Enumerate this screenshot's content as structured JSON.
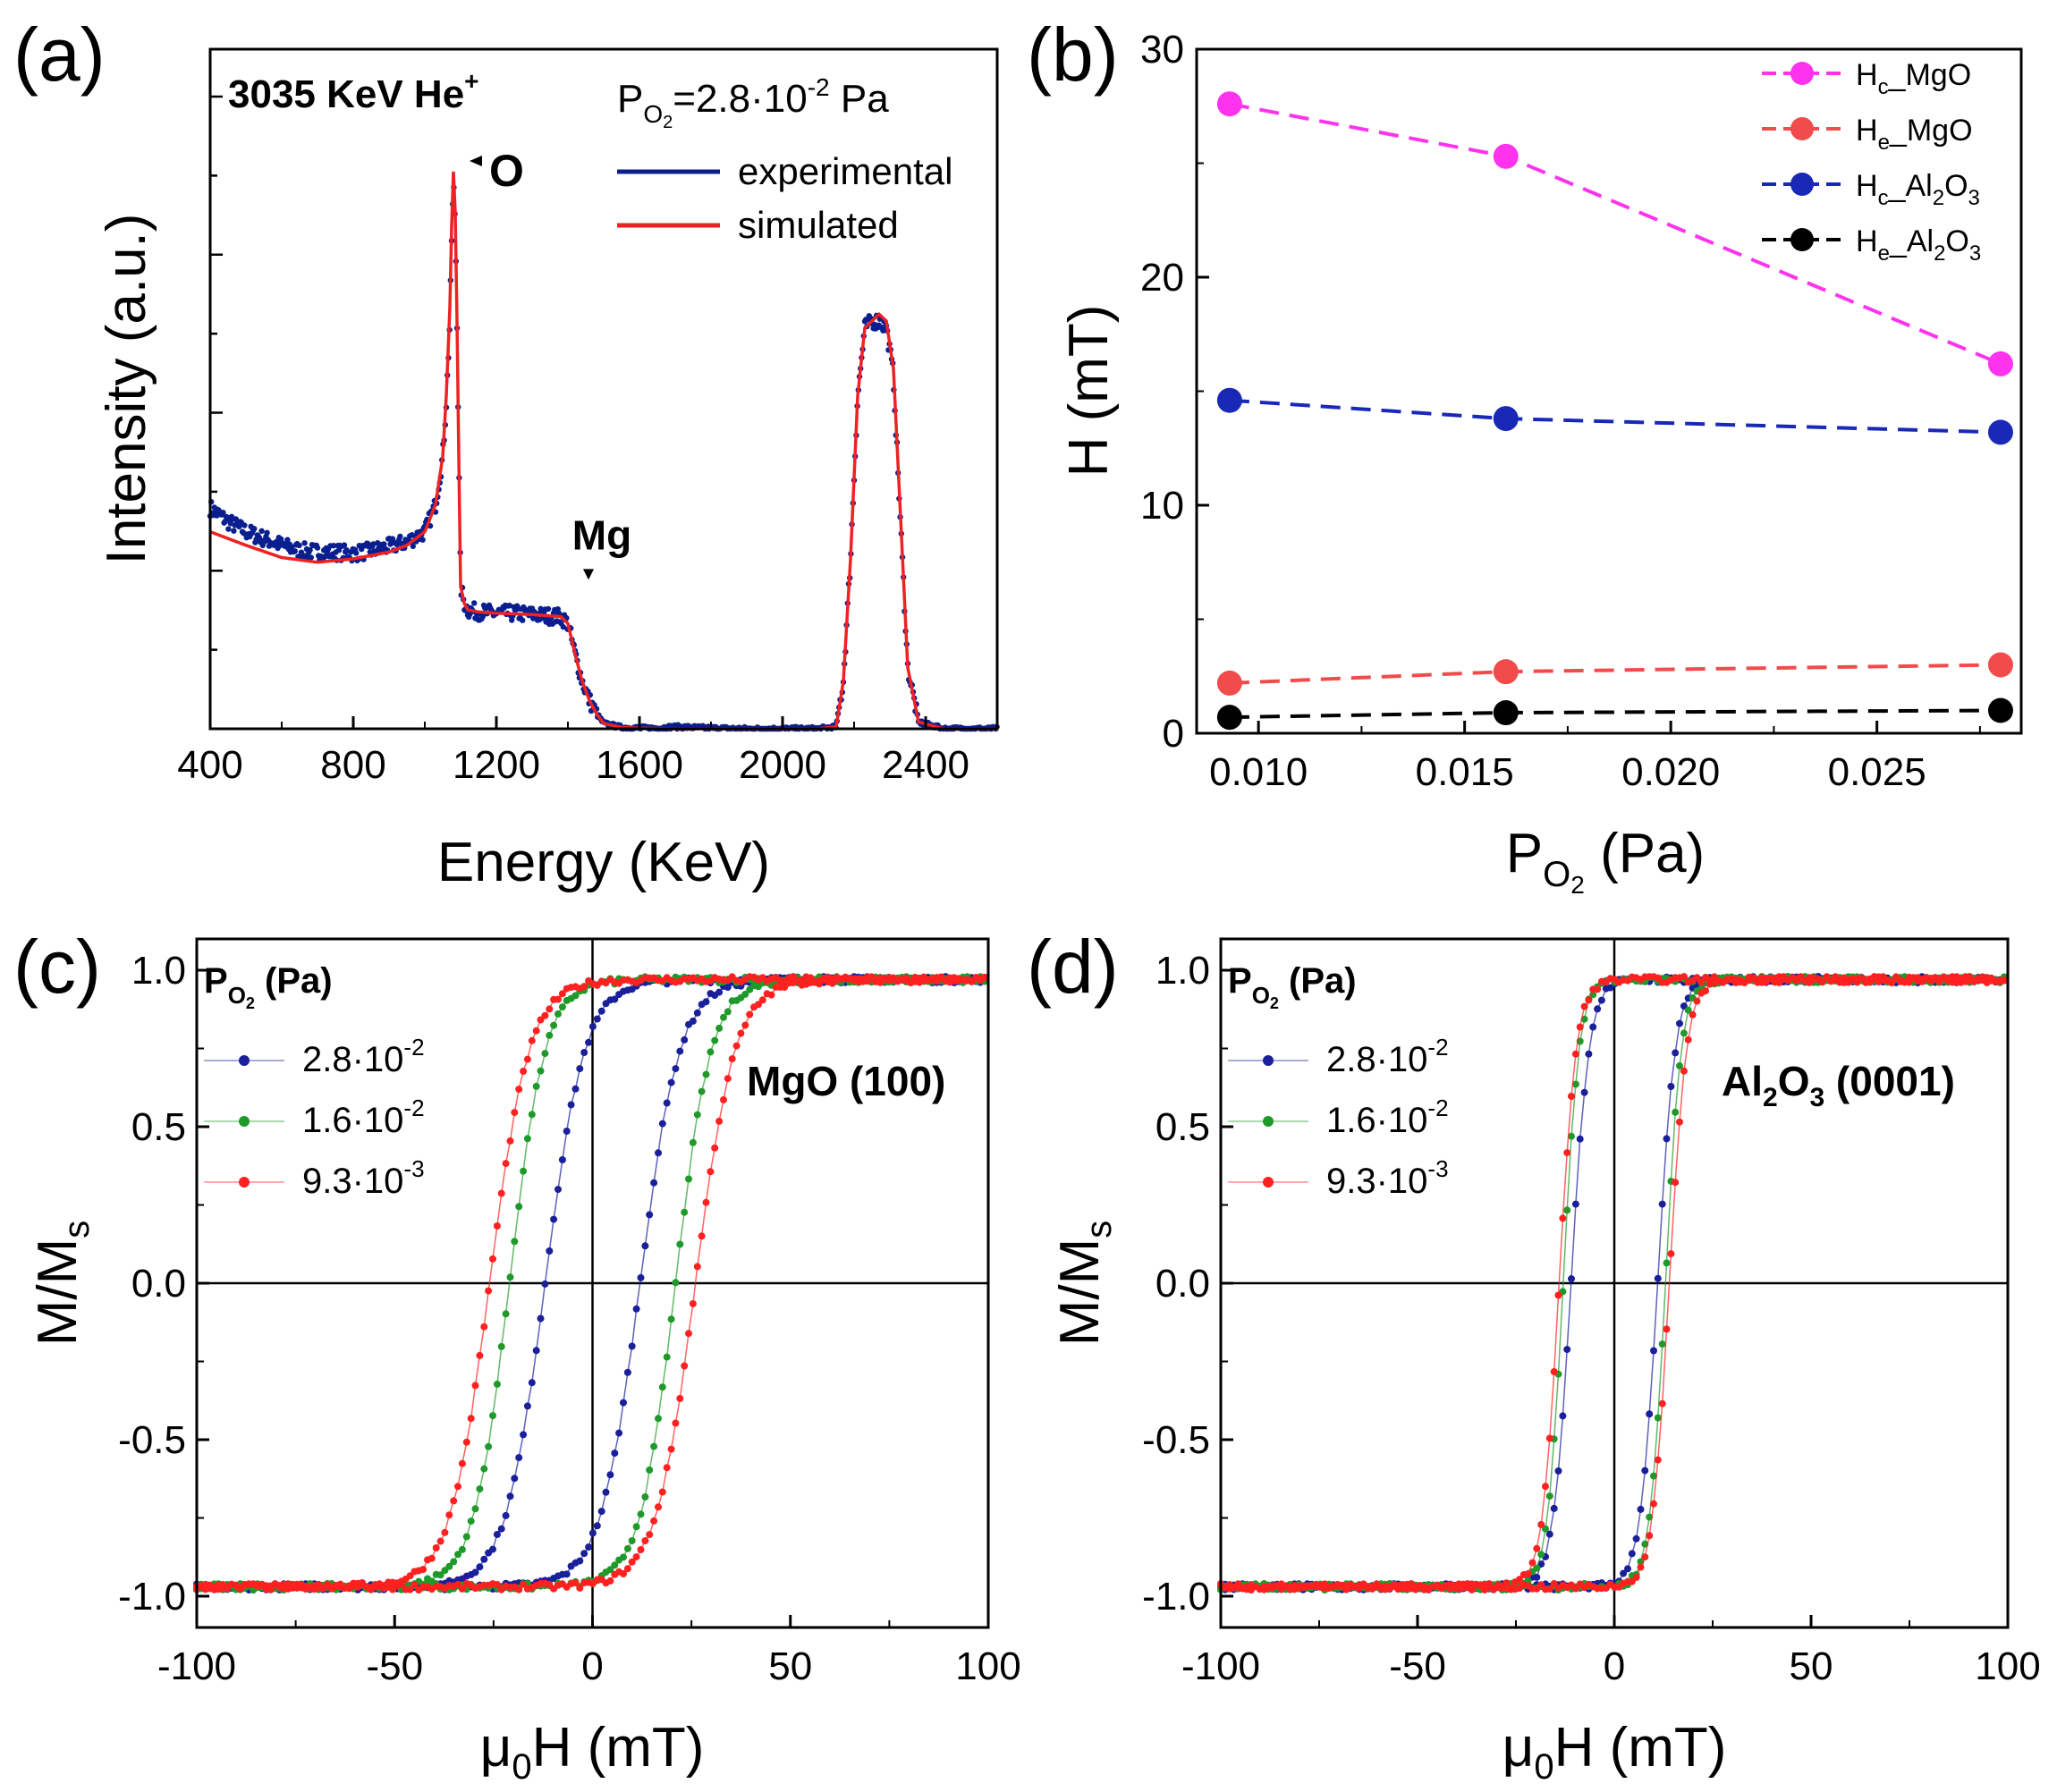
{
  "figure": {
    "panels": [
      "(a)",
      "(b)",
      "(c)",
      "(d)"
    ]
  },
  "chart_data": [
    {
      "id": "a",
      "type": "line",
      "panel_label": "(a)",
      "title": "",
      "xlabel": "Energy (KeV)",
      "ylabel": "Intensity (a.u.)",
      "xlim": [
        400,
        2600
      ],
      "ylim": [
        0,
        1.0
      ],
      "x_ticks": [
        "400",
        "800",
        "1200",
        "1600",
        "2000",
        "2400"
      ],
      "x_tick_values": [
        400,
        800,
        1200,
        1600,
        2000,
        2400
      ],
      "show_y_ticklabels": false,
      "annotation_beam": "3035 KeV He",
      "annotation_beam_sup": "+",
      "annotation_pressure_prefix": "P",
      "annotation_pressure_sub": "O",
      "annotation_pressure_subsub": "2",
      "annotation_pressure_value": "=2.8·10",
      "annotation_pressure_exp": "-2",
      "annotation_pressure_unit": " Pa",
      "peak_labels": [
        {
          "text": "O",
          "x": 1080,
          "y": 0.825
        },
        {
          "text": "Mg",
          "x": 1420,
          "y": 0.235
        }
      ],
      "colors": {
        "experimental": "#0a1f8f",
        "simulated": "#ee2222"
      },
      "series": [
        {
          "name": "experimental",
          "style": "points",
          "x": [
            400,
            450,
            500,
            550,
            600,
            650,
            700,
            750,
            800,
            850,
            900,
            950,
            1000,
            1030,
            1050,
            1060,
            1070,
            1075,
            1080,
            1085,
            1090,
            1095,
            1100,
            1110,
            1120,
            1150,
            1200,
            1250,
            1300,
            1350,
            1380,
            1400,
            1420,
            1440,
            1460,
            1480,
            1500,
            1550,
            1600,
            1650,
            1700,
            1800,
            1900,
            2000,
            2100,
            2150,
            2170,
            2190,
            2210,
            2230,
            2250,
            2270,
            2290,
            2310,
            2330,
            2350,
            2380,
            2450,
            2600
          ],
          "y": [
            0.325,
            0.305,
            0.29,
            0.28,
            0.27,
            0.262,
            0.26,
            0.26,
            0.258,
            0.262,
            0.268,
            0.275,
            0.29,
            0.33,
            0.4,
            0.48,
            0.6,
            0.72,
            0.8,
            0.75,
            0.6,
            0.4,
            0.21,
            0.185,
            0.175,
            0.172,
            0.17,
            0.17,
            0.168,
            0.166,
            0.165,
            0.155,
            0.11,
            0.07,
            0.042,
            0.022,
            0.008,
            0.002,
            0.001,
            0.001,
            0.003,
            0.001,
            0.0,
            0.0,
            0.0,
            0.003,
            0.07,
            0.25,
            0.49,
            0.59,
            0.6,
            0.6,
            0.59,
            0.52,
            0.3,
            0.09,
            0.01,
            0.0,
            0.0
          ]
        },
        {
          "name": "simulated",
          "style": "line",
          "x": [
            400,
            500,
            600,
            700,
            800,
            900,
            950,
            1000,
            1030,
            1050,
            1060,
            1070,
            1075,
            1080,
            1085,
            1090,
            1095,
            1100,
            1110,
            1120,
            1150,
            1200,
            1300,
            1380,
            1400,
            1420,
            1440,
            1460,
            1480,
            1500,
            1550,
            1600,
            1700,
            1800,
            1900,
            2000,
            2100,
            2150,
            2170,
            2190,
            2210,
            2230,
            2250,
            2270,
            2290,
            2310,
            2330,
            2350,
            2380,
            2450,
            2600
          ],
          "y": [
            0.29,
            0.27,
            0.252,
            0.245,
            0.25,
            0.26,
            0.27,
            0.29,
            0.33,
            0.4,
            0.49,
            0.62,
            0.74,
            0.82,
            0.76,
            0.6,
            0.4,
            0.21,
            0.185,
            0.175,
            0.172,
            0.17,
            0.168,
            0.165,
            0.155,
            0.11,
            0.07,
            0.042,
            0.022,
            0.008,
            0.002,
            0.001,
            0.0,
            0.0,
            0.0,
            0.0,
            0.0,
            0.003,
            0.07,
            0.25,
            0.49,
            0.59,
            0.6,
            0.61,
            0.6,
            0.53,
            0.31,
            0.09,
            0.01,
            0.0,
            0.0
          ]
        }
      ],
      "legend": [
        {
          "name": "experimental",
          "label": "experimental"
        },
        {
          "name": "simulated",
          "label": "simulated"
        }
      ]
    },
    {
      "id": "b",
      "type": "line",
      "panel_label": "(b)",
      "xlabel_main": "P",
      "xlabel_sub": "O",
      "xlabel_subsub": "2",
      "xlabel_unit": " (Pa)",
      "ylabel": "H (mT)",
      "xlim": [
        0.0085,
        0.0285
      ],
      "ylim": [
        0,
        30
      ],
      "x_ticks": [
        "0.010",
        "0.015",
        "0.020",
        "0.025"
      ],
      "x_tick_values": [
        0.01,
        0.015,
        0.02,
        0.025
      ],
      "y_ticks": [
        "0",
        "10",
        "20",
        "30"
      ],
      "y_tick_values": [
        0,
        10,
        20,
        30
      ],
      "x": [
        0.0093,
        0.016,
        0.028
      ],
      "series": [
        {
          "name": "Hc_MgO",
          "label_main": "H",
          "label_sub": "c",
          "label_rest": "_MgO",
          "label_sub2": "",
          "label_rest2": "",
          "label_sub3": "",
          "color": "#ff33ee",
          "values": [
            27.6,
            25.3,
            16.2
          ]
        },
        {
          "name": "He_MgO",
          "label_main": "H",
          "label_sub": "e",
          "label_rest": "_MgO",
          "label_sub2": "",
          "label_rest2": "",
          "label_sub3": "",
          "color": "#f24b4b",
          "values": [
            2.2,
            2.7,
            3.0
          ]
        },
        {
          "name": "Hc_Al2O3",
          "label_main": "H",
          "label_sub": "c",
          "label_rest": "_Al",
          "label_sub2": "2",
          "label_rest2": "O",
          "label_sub3": "3",
          "color": "#1a28b8",
          "values": [
            14.6,
            13.8,
            13.2
          ]
        },
        {
          "name": "He_Al2O3",
          "label_main": "H",
          "label_sub": "e",
          "label_rest": "_Al",
          "label_sub2": "2",
          "label_rest2": "O",
          "label_sub3": "3",
          "color": "#000000",
          "values": [
            0.7,
            0.9,
            1.0
          ]
        }
      ]
    },
    {
      "id": "c",
      "type": "scatter",
      "panel_label": "(c)",
      "xlabel_mu": "μ",
      "xlabel_sub": "0",
      "xlabel_rest": "H (mT)",
      "ylabel_main": "M/M",
      "ylabel_sub": "s",
      "xlim": [
        -100,
        100
      ],
      "ylim": [
        -1.1,
        1.1
      ],
      "x_ticks": [
        "-100",
        "-50",
        "0",
        "50",
        "100"
      ],
      "x_tick_values": [
        -100,
        -50,
        0,
        50,
        100
      ],
      "y_ticks": [
        "-1.0",
        "-0.5",
        "0.0",
        "0.5",
        "1.0"
      ],
      "y_tick_values": [
        -1.0,
        -0.5,
        0.0,
        0.5,
        1.0
      ],
      "sample_label": "MgO (100)",
      "legend_title_main": "P",
      "legend_title_sub": "O",
      "legend_title_subsub": "2",
      "legend_title_unit": " (Pa)",
      "series": [
        {
          "name": "2.8e-2",
          "label_base": "2.8·10",
          "label_exp": "-2",
          "color": "#1a1f9a",
          "hc": 12,
          "width": 10,
          "jump": 0.18
        },
        {
          "name": "1.6e-2",
          "label_base": "1.6·10",
          "label_exp": "-2",
          "color": "#1f9a2a",
          "hc": 21,
          "width": 9,
          "jump": 0.0
        },
        {
          "name": "9.3e-3",
          "label_base": "9.3·10",
          "label_exp": "-3",
          "color": "#ff2020",
          "hc": 26,
          "width": 10,
          "jump": 0.0
        }
      ]
    },
    {
      "id": "d",
      "type": "scatter",
      "panel_label": "(d)",
      "xlabel_mu": "μ",
      "xlabel_sub": "0",
      "xlabel_rest": "H (mT)",
      "ylabel_main": "M/M",
      "ylabel_sub": "s",
      "xlim": [
        -100,
        100
      ],
      "ylim": [
        -1.1,
        1.1
      ],
      "x_ticks": [
        "-100",
        "-50",
        "0",
        "50",
        "100"
      ],
      "x_tick_values": [
        -100,
        -50,
        0,
        50,
        100
      ],
      "y_ticks": [
        "-1.0",
        "-0.5",
        "0.0",
        "0.5",
        "1.0"
      ],
      "y_tick_values": [
        -1.0,
        -0.5,
        0.0,
        0.5,
        1.0
      ],
      "sample_label_main": "Al",
      "sample_label_sub1": "2",
      "sample_label_mid": "O",
      "sample_label_sub2": "3",
      "sample_label_rest": " (0001)",
      "legend_title_main": "P",
      "legend_title_sub": "O",
      "legend_title_subsub": "2",
      "legend_title_unit": " (Pa)",
      "series": [
        {
          "name": "2.8e-2",
          "label_base": "2.8·10",
          "label_exp": "-2",
          "color": "#1a1f9a",
          "hc": 11,
          "width": 4.5,
          "jump": 0.0
        },
        {
          "name": "1.6e-2",
          "label_base": "1.6·10",
          "label_exp": "-2",
          "color": "#1f9a2a",
          "hc": 13,
          "width": 4.0,
          "jump": 0.0
        },
        {
          "name": "9.3e-3",
          "label_base": "9.3·10",
          "label_exp": "-3",
          "color": "#ff2020",
          "hc": 14,
          "width": 4.3,
          "jump": 0.0
        }
      ]
    }
  ]
}
